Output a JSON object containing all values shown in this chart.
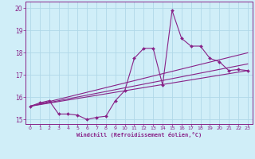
{
  "title": "",
  "xlabel": "Windchill (Refroidissement éolien,°C)",
  "bg_color": "#d0eef8",
  "grid_color": "#b0d8e8",
  "line_color": "#882288",
  "spine_color": "#882288",
  "xlim": [
    -0.5,
    23.5
  ],
  "ylim": [
    14.8,
    20.3
  ],
  "xticks": [
    0,
    1,
    2,
    3,
    4,
    5,
    6,
    7,
    8,
    9,
    10,
    11,
    12,
    13,
    14,
    15,
    16,
    17,
    18,
    19,
    20,
    21,
    22,
    23
  ],
  "yticks": [
    15,
    16,
    17,
    18,
    19,
    20
  ],
  "line1_x": [
    0,
    1,
    2,
    3,
    4,
    5,
    6,
    7,
    8,
    9,
    10,
    11,
    12,
    13,
    14,
    15,
    16,
    17,
    18,
    19,
    20,
    21,
    22,
    23
  ],
  "line1_y": [
    15.6,
    15.75,
    15.85,
    15.25,
    15.25,
    15.2,
    15.0,
    15.1,
    15.15,
    15.85,
    16.3,
    17.75,
    18.2,
    18.2,
    16.55,
    19.9,
    18.65,
    18.3,
    18.3,
    17.75,
    17.6,
    17.2,
    17.25,
    17.2
  ],
  "line2_x": [
    0,
    23
  ],
  "line2_y": [
    15.6,
    17.2
  ],
  "line3_x": [
    0,
    23
  ],
  "line3_y": [
    15.6,
    17.5
  ],
  "line4_x": [
    0,
    23
  ],
  "line4_y": [
    15.6,
    18.0
  ]
}
